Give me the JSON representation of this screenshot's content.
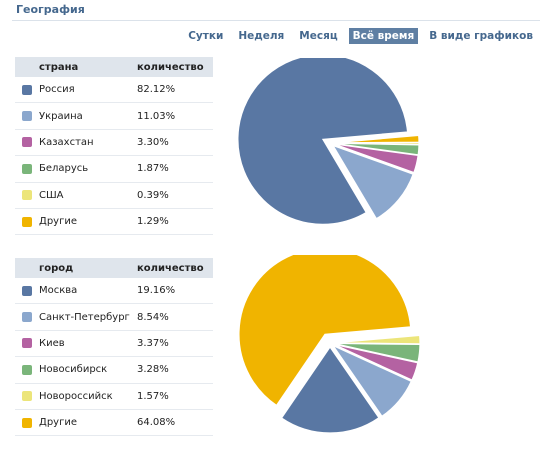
{
  "header": {
    "title": "География"
  },
  "periods": [
    {
      "label": "Сутки",
      "active": false
    },
    {
      "label": "Неделя",
      "active": false
    },
    {
      "label": "Месяц",
      "active": false
    },
    {
      "label": "Всё время",
      "active": true
    },
    {
      "label": "В виде графиков",
      "active": false
    }
  ],
  "countries": {
    "col1": "страна",
    "col2": "количество",
    "rows": [
      {
        "name": "Россия",
        "value": "82.12%",
        "pct": 82.12,
        "color": "#5977a3"
      },
      {
        "name": "Украина",
        "value": "11.03%",
        "pct": 11.03,
        "color": "#8ba7cd"
      },
      {
        "name": "Казахстан",
        "value": "3.30%",
        "pct": 3.3,
        "color": "#b462a2"
      },
      {
        "name": "Беларусь",
        "value": "1.87%",
        "pct": 1.87,
        "color": "#7ab57a"
      },
      {
        "name": "США",
        "value": "0.39%",
        "pct": 0.39,
        "color": "#ece57a"
      },
      {
        "name": "Другие",
        "value": "1.29%",
        "pct": 1.29,
        "color": "#f0b400"
      }
    ]
  },
  "cities": {
    "col1": "город",
    "col2": "количество",
    "rows": [
      {
        "name": "Москва",
        "value": "19.16%",
        "pct": 19.16,
        "color": "#5977a3"
      },
      {
        "name": "Санкт-Петербург",
        "value": "8.54%",
        "pct": 8.54,
        "color": "#8ba7cd"
      },
      {
        "name": "Киев",
        "value": "3.37%",
        "pct": 3.37,
        "color": "#b462a2"
      },
      {
        "name": "Новосибирск",
        "value": "3.28%",
        "pct": 3.28,
        "color": "#7ab57a"
      },
      {
        "name": "Новороссийск",
        "value": "1.57%",
        "pct": 1.57,
        "color": "#ece57a"
      },
      {
        "name": "Другие",
        "value": "64.08%",
        "pct": 64.08,
        "color": "#f0b400"
      }
    ]
  },
  "chart_data": [
    {
      "type": "pie",
      "categories": [
        "Россия",
        "Украина",
        "Казахстан",
        "Беларусь",
        "США",
        "Другие"
      ],
      "values": [
        82.12,
        11.03,
        3.3,
        1.87,
        0.39,
        1.29
      ]
    },
    {
      "type": "pie",
      "categories": [
        "Москва",
        "Санкт-Петербург",
        "Киев",
        "Новосибирск",
        "Новороссийск",
        "Другие"
      ],
      "values": [
        19.16,
        8.54,
        3.37,
        3.28,
        1.57,
        64.08
      ]
    }
  ]
}
